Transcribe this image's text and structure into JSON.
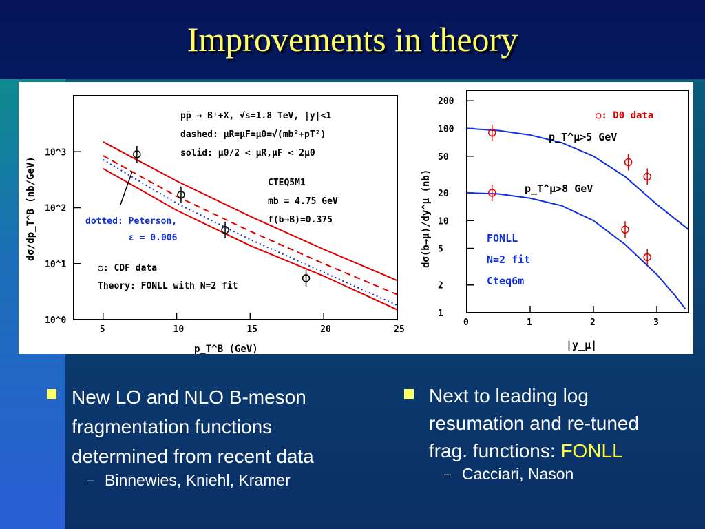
{
  "slide": {
    "title": "Improvements in theory"
  },
  "bullets": [
    {
      "lines": [
        "New LO and NLO B-meson",
        "fragmentation functions",
        "determined from recent data"
      ],
      "sub": "Binnewies, Kniehl, Kramer"
    },
    {
      "lines": [
        "Next to leading log",
        "resumation and re-tuned"
      ],
      "line3_prefix": "frag. functions: ",
      "line3_highlight": "FONLL",
      "sub": "Cacciari, Nason"
    }
  ],
  "colors": {
    "title": "#ffff66",
    "bullet_marker": "#ffff66",
    "highlight": "#ffff33",
    "red": "#e00000",
    "blue": "#1030e0"
  },
  "chart_data": [
    {
      "type": "line",
      "xlabel": "p_T^B (GeV)",
      "ylabel": "dσ/dp_T^B (nb/GeV)",
      "yscale": "log",
      "xlim": [
        3,
        25
      ],
      "ylim": [
        1,
        10000
      ],
      "x_ticks": [
        "5",
        "10",
        "15",
        "20",
        "25"
      ],
      "y_ticks": [
        "10^0",
        "10^1",
        "10^2",
        "10^3"
      ],
      "annotations": {
        "process": "pp̄ → B⁺+X, √s=1.8 TeV, |y|<1",
        "dashed": "dashed: μR=μF=μ0=√(mb²+pT²)",
        "solid": "solid: μ0/2 < μR,μF < 2μ0",
        "pdf": "CTEQ5M1",
        "mass": "mb = 4.75 GeV",
        "frag": "f(b→B)=0.375",
        "dotted1": "dotted: Peterson,",
        "dotted2": "ε = 0.006",
        "cdf": "○: CDF data",
        "theory": "Theory: FONLL with N=2 fit"
      },
      "data_points": [
        {
          "x": 7.3,
          "y": 900
        },
        {
          "x": 10.3,
          "y": 170
        },
        {
          "x": 13.3,
          "y": 40
        },
        {
          "x": 18.8,
          "y": 5.5
        }
      ],
      "series": [
        {
          "name": "solid-upper",
          "style": "solid",
          "color": "#e00000",
          "x": [
            5,
            10,
            15,
            20,
            25
          ],
          "y": [
            1500,
            300,
            70,
            18,
            5
          ]
        },
        {
          "name": "solid-lower",
          "style": "solid",
          "color": "#e00000",
          "x": [
            5,
            10,
            15,
            20,
            25
          ],
          "y": [
            500,
            90,
            21,
            6,
            1.5
          ]
        },
        {
          "name": "dashed",
          "style": "dashed",
          "color": "#e00000",
          "x": [
            5,
            10,
            15,
            20,
            25
          ],
          "y": [
            850,
            160,
            38,
            10,
            2.8
          ]
        },
        {
          "name": "dotted",
          "style": "dotted",
          "color": "#1030e0",
          "x": [
            5,
            10,
            15,
            20,
            25
          ],
          "y": [
            720,
            120,
            27,
            7,
            1.8
          ]
        }
      ]
    },
    {
      "type": "line",
      "xlabel": "|y_μ|",
      "ylabel": "dσ(b→μ)/dy^μ (nb)",
      "yscale": "log",
      "xlim": [
        0,
        3.5
      ],
      "ylim": [
        1,
        260
      ],
      "x_ticks": [
        "0",
        "1",
        "2",
        "3"
      ],
      "y_ticks": [
        "1",
        "2",
        "5",
        "10",
        "20",
        "50",
        "100",
        "200"
      ],
      "annotations": {
        "d0": "○: D0 data",
        "pt5": "p_T^μ>5 GeV",
        "pt8": "p_T^μ>8 GeV",
        "fonll": "FONLL",
        "fit": "N=2 fit",
        "pdf": "Cteq6m"
      },
      "data_points": [
        {
          "x": 0.4,
          "y": 90
        },
        {
          "x": 2.55,
          "y": 43
        },
        {
          "x": 2.85,
          "y": 30
        },
        {
          "x": 0.4,
          "y": 20
        },
        {
          "x": 2.5,
          "y": 8
        },
        {
          "x": 2.85,
          "y": 4
        }
      ],
      "series": [
        {
          "name": "pT>5 GeV",
          "color": "#1030e0",
          "x": [
            0,
            0.5,
            1,
            1.5,
            2,
            2.5,
            3,
            3.5
          ],
          "y": [
            100,
            95,
            85,
            70,
            50,
            30,
            15,
            8
          ]
        },
        {
          "name": "pT>8 GeV",
          "color": "#1030e0",
          "x": [
            0,
            0.5,
            1,
            1.5,
            2,
            2.5,
            3,
            3.3,
            3.45
          ],
          "y": [
            20,
            19.5,
            17.5,
            14.5,
            10,
            5.5,
            2.6,
            1.5,
            1.1
          ]
        }
      ]
    }
  ]
}
